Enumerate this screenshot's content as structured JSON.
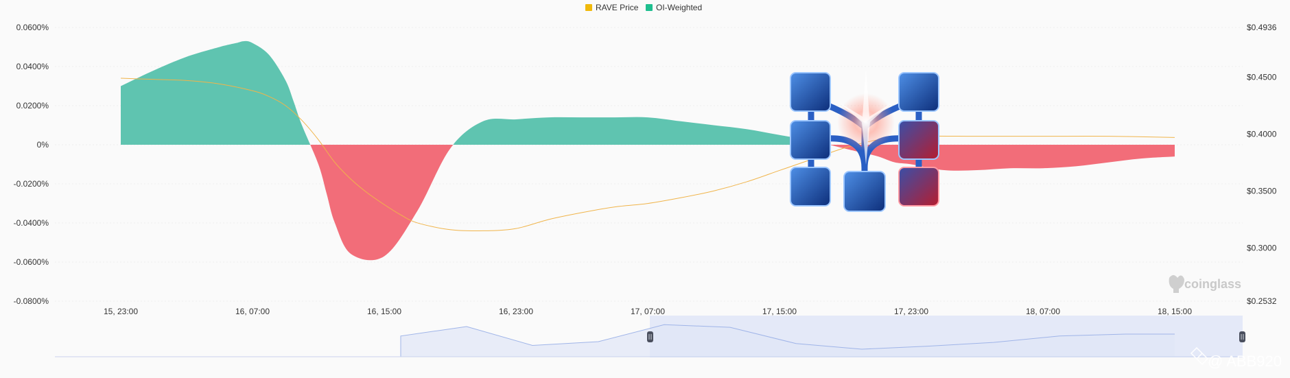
{
  "legend": [
    {
      "name": "RAVE Price",
      "color": "#f0b90b"
    },
    {
      "name": "OI-Weighted",
      "color": "#1fbf8f"
    }
  ],
  "colors": {
    "positive": "#5fc4b0",
    "negative": "#f26d79",
    "price_line": "#f0b44a",
    "grid": "#eeeeee",
    "slider_fill": "#dfe5f7",
    "slider_line": "#9fb4e8"
  },
  "watermark": "coinglass",
  "handle_text": "@ ABB920",
  "chart_data": {
    "type": "area",
    "x_labels": [
      "15, 23:00",
      "16, 07:00",
      "16, 15:00",
      "16, 23:00",
      "17, 07:00",
      "17, 15:00",
      "17, 23:00",
      "18, 07:00",
      "18, 15:00"
    ],
    "y_left_ticks": [
      "0.0600%",
      "0.0400%",
      "0.0200%",
      "0%",
      "-0.0200%",
      "-0.0400%",
      "-0.0600%",
      "-0.0800%"
    ],
    "y_right_ticks": [
      "$0.4936",
      "$0.4500",
      "$0.4000",
      "$0.3500",
      "$0.3000",
      "$0.2532"
    ],
    "y_left_range": [
      -0.08,
      0.06
    ],
    "y_right_range": [
      0.2532,
      0.4936
    ],
    "x_hours": [
      0,
      2,
      4,
      6,
      7,
      7.5,
      8,
      9,
      10,
      10.5,
      11,
      12,
      12.5,
      13,
      14,
      16,
      18,
      20,
      22,
      24,
      26,
      28,
      30,
      32,
      34,
      36,
      38,
      40,
      42,
      44,
      45,
      46,
      47,
      48,
      50,
      52,
      54,
      56,
      58,
      60,
      62,
      64
    ],
    "series": [
      {
        "name": "OI-Weighted",
        "unit": "%",
        "values": [
          0.03,
          0.038,
          0.045,
          0.05,
          0.052,
          0.053,
          0.052,
          0.046,
          0.033,
          0.022,
          0.01,
          -0.01,
          -0.025,
          -0.04,
          -0.056,
          -0.057,
          -0.034,
          -0.002,
          0.012,
          0.013,
          0.014,
          0.014,
          0.014,
          0.014,
          0.012,
          0.01,
          0.008,
          0.005,
          0.002,
          -0.002,
          -0.004,
          -0.006,
          -0.009,
          -0.01,
          -0.013,
          -0.013,
          -0.012,
          -0.012,
          -0.011,
          -0.009,
          -0.007,
          -0.006
        ]
      },
      {
        "name": "RAVE Price",
        "unit": "$",
        "x_hours": [
          0,
          2,
          4,
          6,
          8,
          9,
          10,
          11,
          12,
          13,
          14,
          15,
          16,
          17,
          18,
          20,
          22,
          24,
          26,
          28,
          30,
          32,
          34,
          36,
          38,
          40,
          42,
          44,
          46,
          48,
          52,
          56,
          60,
          64
        ],
        "values": [
          0.449,
          0.448,
          0.447,
          0.444,
          0.438,
          0.433,
          0.425,
          0.412,
          0.395,
          0.375,
          0.36,
          0.348,
          0.338,
          0.329,
          0.322,
          0.316,
          0.315,
          0.317,
          0.325,
          0.331,
          0.336,
          0.339,
          0.344,
          0.35,
          0.358,
          0.368,
          0.378,
          0.388,
          0.395,
          0.398,
          0.398,
          0.398,
          0.398,
          0.397
        ]
      }
    ],
    "navigator": {
      "x_hours": [
        -4,
        0,
        4,
        8,
        12,
        16,
        17,
        21,
        25,
        29,
        33,
        37,
        41,
        45,
        49,
        53,
        57,
        61,
        64
      ],
      "values": [
        0,
        0,
        0,
        0,
        0,
        0,
        0.55,
        0.8,
        0.3,
        0.4,
        0.85,
        0.78,
        0.35,
        0.2,
        0.28,
        0.38,
        0.55,
        0.6,
        0.6
      ]
    }
  }
}
